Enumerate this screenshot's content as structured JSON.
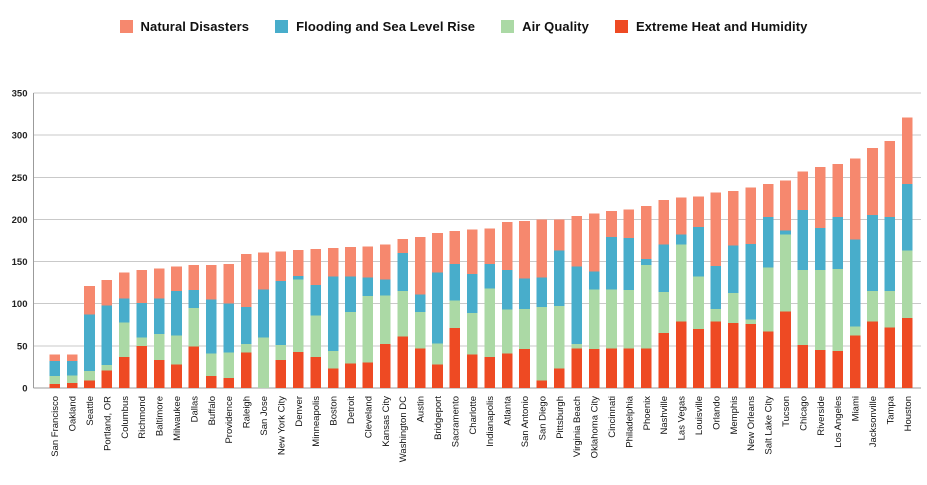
{
  "chart_data": {
    "type": "bar",
    "stacked": true,
    "title": "",
    "xlabel": "",
    "ylabel": "",
    "ylim": [
      0,
      350
    ],
    "yticks": [
      0,
      50,
      100,
      150,
      200,
      250,
      300,
      350
    ],
    "grid": true,
    "legend_position": "top",
    "categories": [
      "San Francisco",
      "Oakland",
      "Seattle",
      "Portland, OR",
      "Columbus",
      "Richmond",
      "Baltimore",
      "Milwaukee",
      "Dallas",
      "Buffalo",
      "Providence",
      "Raleigh",
      "San Jose",
      "New York City",
      "Denver",
      "Minneapolis",
      "Boston",
      "Detroit",
      "Cleveland",
      "Kansas City",
      "Washington DC",
      "Austin",
      "Bridgeport",
      "Sacramento",
      "Charlotte",
      "Indianapolis",
      "Atlanta",
      "San Antonio",
      "San Diego",
      "Pittsburgh",
      "Virginia Beach",
      "Oklahoma City",
      "Cincinnati",
      "Philadelphia",
      "Phoenix",
      "Nashville",
      "Las Vegas",
      "Louisville",
      "Orlando",
      "Memphis",
      "New Orleans",
      "Salt Lake City",
      "Tucson",
      "Chicago",
      "Riverside",
      "Los Angeles",
      "Miami",
      "Jacksonville",
      "Tampa",
      "Houston"
    ],
    "series": [
      {
        "name": "Extreme Heat and Humidity",
        "color": "#EE4A23",
        "values": [
          5,
          6,
          9,
          21,
          37,
          50,
          33,
          28,
          49,
          14,
          12,
          42,
          0,
          33,
          43,
          37,
          23,
          29,
          30,
          52,
          61,
          47,
          28,
          71,
          40,
          37,
          41,
          46,
          9,
          23,
          47,
          46,
          47,
          47,
          47,
          65,
          79,
          70,
          79,
          77,
          76,
          67,
          91,
          51,
          45,
          44,
          62,
          79,
          72,
          83
        ]
      },
      {
        "name": "Air Quality",
        "color": "#ABD9A5",
        "values": [
          9,
          9,
          11,
          6,
          41,
          10,
          31,
          34,
          46,
          27,
          30,
          10,
          60,
          18,
          86,
          49,
          21,
          61,
          79,
          58,
          54,
          43,
          25,
          33,
          49,
          81,
          52,
          48,
          87,
          74,
          5,
          71,
          70,
          69,
          99,
          49,
          91,
          62,
          15,
          36,
          5,
          76,
          91,
          89,
          95,
          97,
          11,
          36,
          43,
          80
        ]
      },
      {
        "name": "Flooding and Sea Level Rise",
        "color": "#48ADCB",
        "values": [
          18,
          17,
          67,
          71,
          28,
          41,
          42,
          53,
          21,
          64,
          58,
          44,
          57,
          76,
          4,
          36,
          88,
          42,
          22,
          19,
          45,
          21,
          84,
          43,
          46,
          29,
          47,
          36,
          35,
          66,
          92,
          21,
          62,
          62,
          7,
          56,
          12,
          59,
          51,
          56,
          90,
          60,
          5,
          71,
          50,
          62,
          103,
          90,
          88,
          79
        ]
      },
      {
        "name": "Natural Disasters",
        "color": "#F6886E",
        "values": [
          8,
          8,
          34,
          30,
          31,
          39,
          36,
          29,
          30,
          41,
          47,
          63,
          44,
          35,
          31,
          43,
          34,
          35,
          37,
          41,
          17,
          68,
          47,
          39,
          53,
          42,
          57,
          68,
          69,
          37,
          60,
          69,
          31,
          34,
          63,
          53,
          44,
          36,
          87,
          65,
          67,
          39,
          59,
          46,
          72,
          63,
          96,
          80,
          90,
          79
        ]
      }
    ],
    "legend": [
      {
        "label": "Natural Disasters",
        "color": "#F6886E"
      },
      {
        "label": "Flooding and Sea Level Rise",
        "color": "#48ADCB"
      },
      {
        "label": "Air Quality",
        "color": "#ABD9A5"
      },
      {
        "label": "Extreme Heat and Humidity",
        "color": "#EE4A23"
      }
    ]
  }
}
